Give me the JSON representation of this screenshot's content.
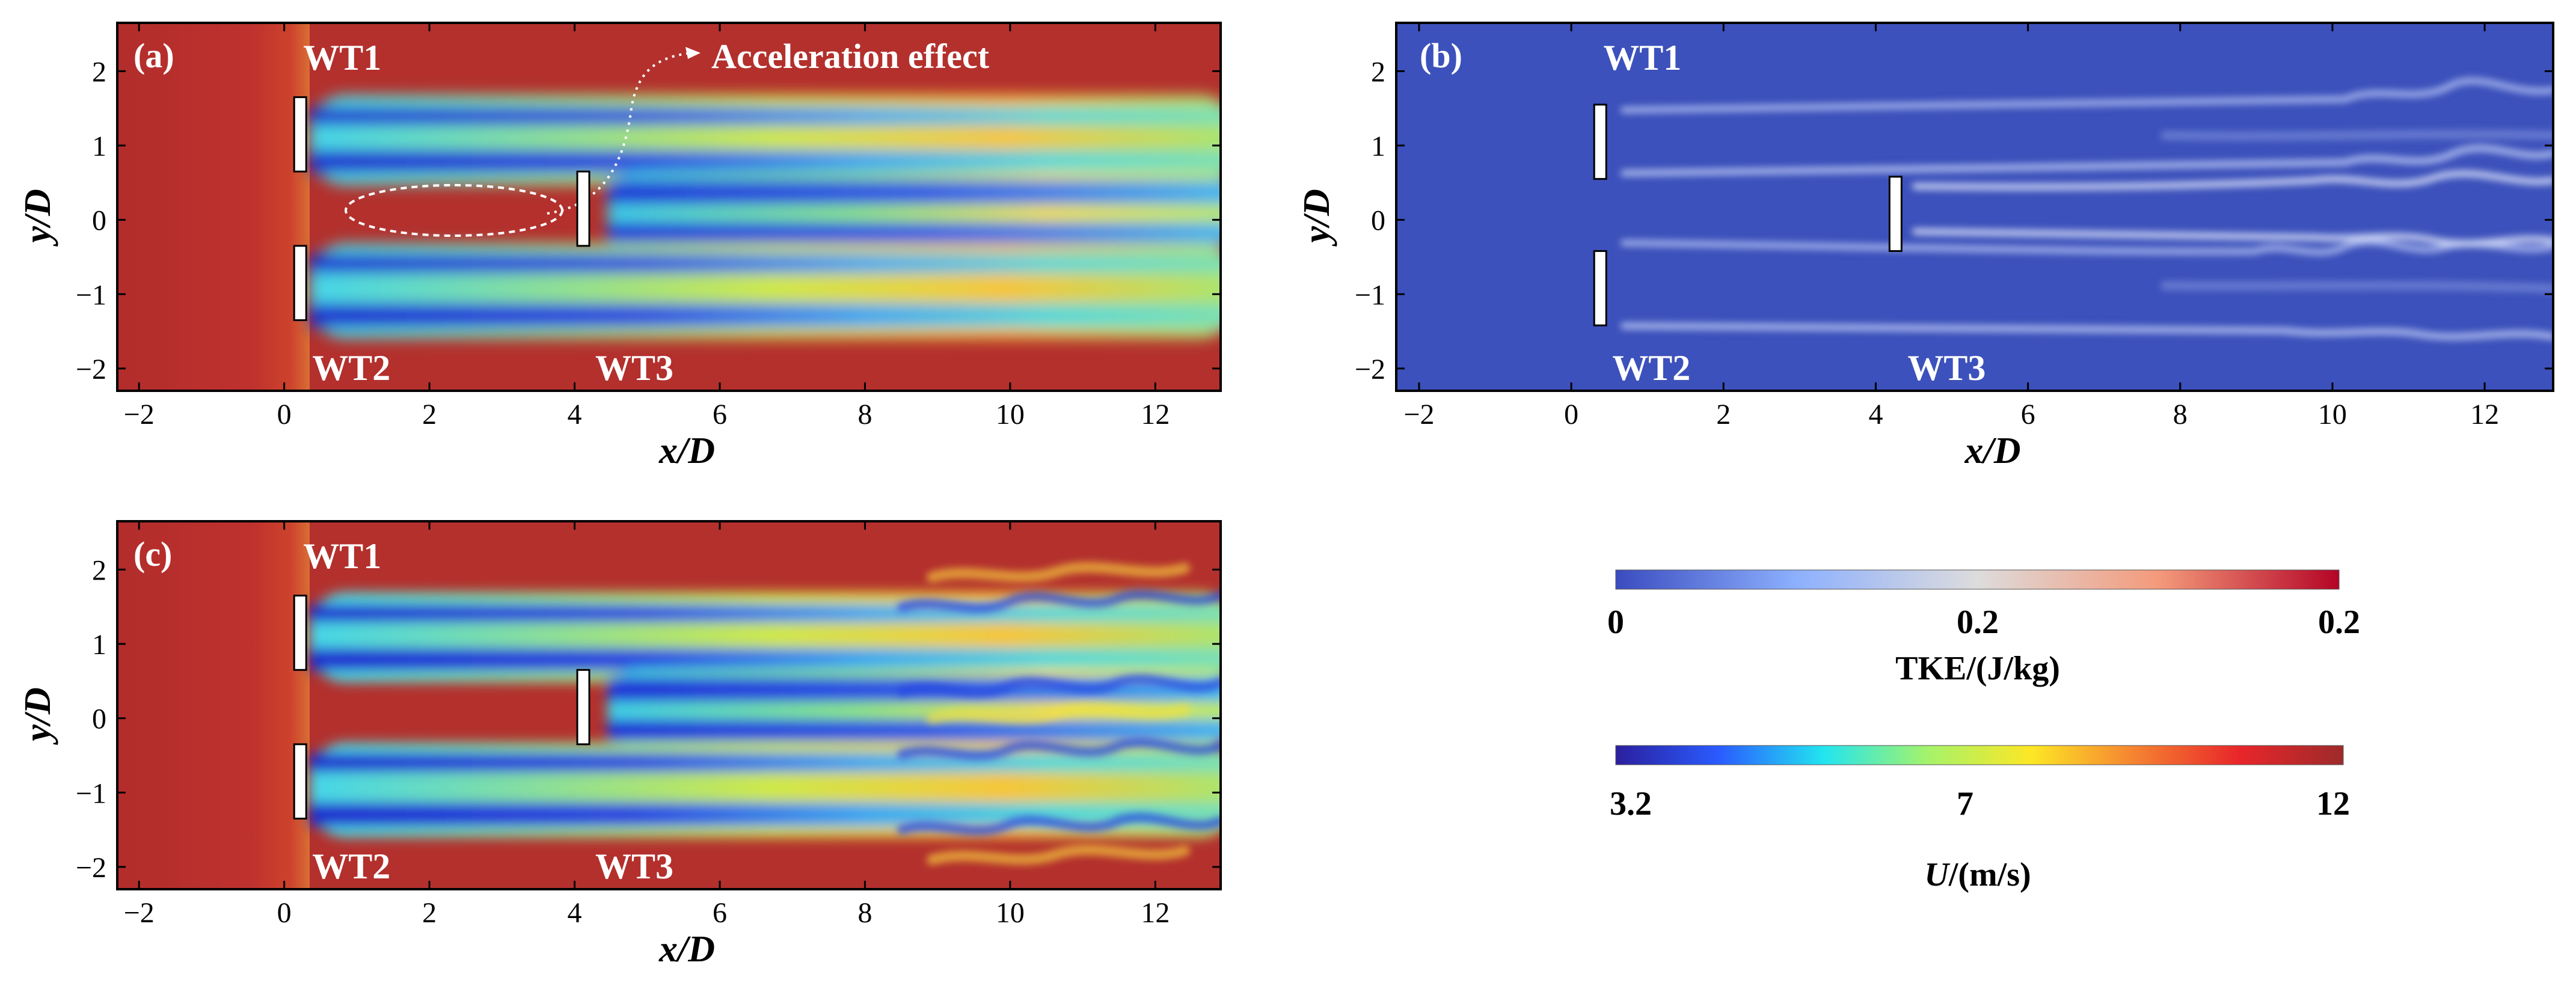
{
  "axes": {
    "x_title": "x/D",
    "y_title": "y/D",
    "x_ticks": [
      -2,
      0,
      2,
      4,
      6,
      8,
      10,
      12
    ],
    "y_ticks": [
      -2,
      -1,
      0,
      1,
      2
    ],
    "x_range": [
      -2.3,
      12.9
    ],
    "y_range": [
      -2.3,
      2.65
    ]
  },
  "panels": [
    {
      "label": "(a)",
      "field": "U",
      "turbines": [
        {
          "name": "WT1",
          "x": 0.22,
          "y": 1.15
        },
        {
          "name": "WT2",
          "x": 0.22,
          "y": -0.85
        },
        {
          "name": "WT3",
          "x": 4.12,
          "y": 0.15
        }
      ],
      "annotation": "Acceleration effect"
    },
    {
      "label": "(b)",
      "field": "TKE",
      "turbines": [
        {
          "name": "WT1",
          "x": 0.38,
          "y": 1.05
        },
        {
          "name": "WT2",
          "x": 0.38,
          "y": -0.92
        },
        {
          "name": "WT3",
          "x": 4.26,
          "y": 0.08
        }
      ]
    },
    {
      "label": "(c)",
      "field": "U",
      "turbines": [
        {
          "name": "WT1",
          "x": 0.22,
          "y": 1.15
        },
        {
          "name": "WT2",
          "x": 0.22,
          "y": -0.85
        },
        {
          "name": "WT3",
          "x": 4.12,
          "y": 0.15
        }
      ]
    }
  ],
  "colorbars": {
    "tke": {
      "ticks": [
        "0",
        "0.2",
        "0.2"
      ],
      "title": "TKE/(J/kg)",
      "colors": [
        "#3a4cc0",
        "#8db0fe",
        "#dddcdc",
        "#f49a7b",
        "#b40426"
      ]
    },
    "velocity": {
      "ticks": [
        "3.2",
        "7",
        "12"
      ],
      "title_italic": "U",
      "title_rest": "/(m/s)",
      "colors": [
        "#2b1f9e",
        "#2a5cff",
        "#22e5f0",
        "#a5f36a",
        "#fde725",
        "#f58231",
        "#e8262a",
        "#9e2a2b"
      ]
    }
  }
}
